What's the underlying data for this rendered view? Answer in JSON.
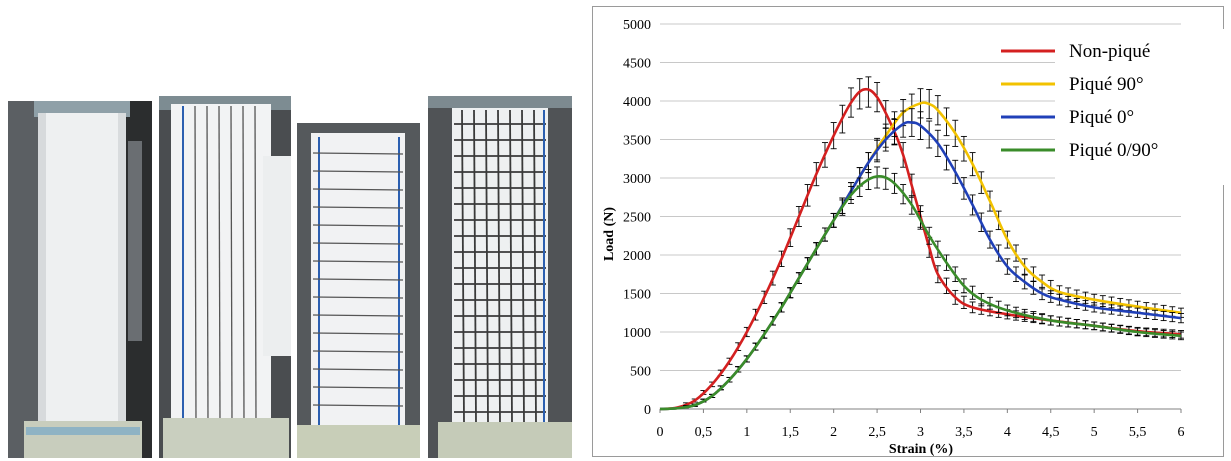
{
  "chart_data": {
    "type": "line",
    "title": "",
    "xlabel": "Strain (%)",
    "ylabel": "Load (N)",
    "xlim": [
      0,
      6
    ],
    "ylim": [
      0,
      5000
    ],
    "x_ticks": [
      0,
      0.5,
      1,
      1.5,
      2,
      2.5,
      3,
      3.5,
      4,
      4.5,
      5,
      5.5,
      6
    ],
    "x_tick_labels": [
      "0",
      "0,5",
      "1",
      "1,5",
      "2",
      "2,5",
      "3",
      "3,5",
      "4",
      "4,5",
      "5",
      "5,5",
      "6"
    ],
    "y_ticks": [
      0,
      500,
      1000,
      1500,
      2000,
      2500,
      3000,
      3500,
      4000,
      4500,
      5000
    ],
    "y_tick_labels": [
      "0",
      "500",
      "1000",
      "1500",
      "2000",
      "2500",
      "3000",
      "3500",
      "4000",
      "4500",
      "5000"
    ],
    "grid": "horizontal",
    "legend_position": "top-right",
    "error_bars": true,
    "series": [
      {
        "name": "Non-piqué",
        "color": "#d42020",
        "x": [
          0,
          0.2,
          0.4,
          0.6,
          0.8,
          1.0,
          1.2,
          1.4,
          1.6,
          1.8,
          2.0,
          2.2,
          2.35,
          2.5,
          2.7,
          2.8,
          2.9,
          3.0,
          3.1,
          3.2,
          3.4,
          3.6,
          4.0,
          4.5,
          5.0,
          5.5,
          6.0
        ],
        "y": [
          0,
          20,
          110,
          320,
          620,
          1000,
          1450,
          1950,
          2500,
          3050,
          3550,
          3980,
          4150,
          4050,
          3600,
          3300,
          2900,
          2500,
          2100,
          1750,
          1450,
          1320,
          1230,
          1150,
          1080,
          1010,
          970
        ],
        "errors": [
          0,
          10,
          20,
          30,
          40,
          60,
          80,
          100,
          130,
          150,
          170,
          190,
          200,
          190,
          170,
          160,
          150,
          140,
          130,
          110,
          90,
          70,
          60,
          60,
          50,
          50,
          50
        ]
      },
      {
        "name": "Piqué 90°",
        "color": "#f2c200",
        "x": [
          0,
          0.2,
          0.4,
          0.6,
          0.8,
          1.0,
          1.2,
          1.4,
          1.6,
          1.8,
          2.0,
          2.2,
          2.4,
          2.6,
          2.8,
          3.0,
          3.1,
          3.2,
          3.4,
          3.6,
          3.8,
          4.0,
          4.2,
          4.4,
          4.6,
          5.0,
          5.5,
          6.0
        ],
        "y": [
          0,
          10,
          50,
          170,
          380,
          650,
          970,
          1320,
          1700,
          2080,
          2450,
          2830,
          3200,
          3550,
          3850,
          3970,
          3960,
          3880,
          3580,
          3180,
          2700,
          2200,
          1850,
          1650,
          1520,
          1420,
          1330,
          1250
        ],
        "errors": [
          0,
          10,
          15,
          20,
          30,
          40,
          50,
          60,
          70,
          80,
          90,
          110,
          130,
          150,
          170,
          190,
          190,
          190,
          170,
          150,
          130,
          110,
          100,
          90,
          80,
          70,
          70,
          60
        ]
      },
      {
        "name": "Piqué 0°",
        "color": "#2040b8",
        "x": [
          0,
          0.2,
          0.4,
          0.6,
          0.8,
          1.0,
          1.2,
          1.4,
          1.6,
          1.8,
          2.0,
          2.2,
          2.4,
          2.6,
          2.8,
          2.9,
          3.0,
          3.2,
          3.4,
          3.6,
          3.8,
          4.0,
          4.2,
          4.4,
          4.6,
          5.0,
          5.5,
          6.0
        ],
        "y": [
          0,
          10,
          50,
          170,
          380,
          650,
          970,
          1320,
          1700,
          2080,
          2450,
          2830,
          3200,
          3500,
          3700,
          3720,
          3680,
          3450,
          3080,
          2650,
          2200,
          1850,
          1650,
          1500,
          1420,
          1320,
          1250,
          1180
        ],
        "errors": [
          0,
          10,
          15,
          20,
          30,
          40,
          50,
          60,
          70,
          80,
          90,
          110,
          130,
          150,
          170,
          180,
          180,
          170,
          150,
          130,
          110,
          100,
          90,
          80,
          70,
          60,
          60,
          60
        ]
      },
      {
        "name": "Piqué 0/90°",
        "color": "#3a8c2a",
        "x": [
          0,
          0.2,
          0.4,
          0.6,
          0.8,
          1.0,
          1.2,
          1.4,
          1.6,
          1.8,
          2.0,
          2.2,
          2.4,
          2.55,
          2.7,
          2.9,
          3.1,
          3.3,
          3.5,
          3.7,
          4.0,
          4.5,
          5.0,
          5.5,
          6.0
        ],
        "y": [
          0,
          10,
          50,
          170,
          380,
          650,
          970,
          1320,
          1700,
          2080,
          2450,
          2780,
          2980,
          3020,
          2930,
          2650,
          2250,
          1900,
          1600,
          1420,
          1280,
          1150,
          1080,
          1000,
          950
        ],
        "errors": [
          0,
          10,
          15,
          20,
          30,
          40,
          50,
          60,
          70,
          80,
          90,
          110,
          130,
          140,
          130,
          120,
          110,
          100,
          90,
          80,
          70,
          60,
          50,
          50,
          50
        ]
      }
    ]
  }
}
